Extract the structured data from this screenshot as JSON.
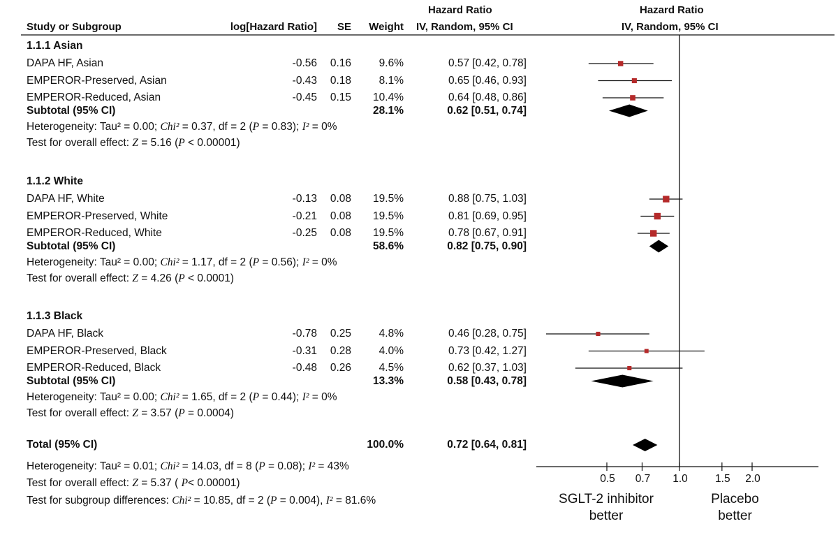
{
  "headers": {
    "study": "Study or Subgroup",
    "loghr": "log[Hazard Ratio]",
    "se": "SE",
    "weight": "Weight",
    "hr_top": "Hazard Ratio",
    "hr_method": "IV, Random, 95% CI",
    "plot_top": "Hazard Ratio",
    "plot_method": "IV, Random, 95% CI"
  },
  "groups": [
    {
      "title": "1.1.1 Asian",
      "rows": [
        {
          "study": "DAPA HF, Asian",
          "loghr": "-0.56",
          "se": "0.16",
          "weight": "9.6%",
          "ci_text": "0.57 [0.42, 0.78]"
        },
        {
          "study": "EMPEROR-Preserved, Asian",
          "loghr": "-0.43",
          "se": "0.18",
          "weight": "8.1%",
          "ci_text": "0.65 [0.46, 0.93]"
        },
        {
          "study": "EMPEROR-Reduced, Asian",
          "loghr": "-0.45",
          "se": "0.15",
          "weight": "10.4%",
          "ci_text": "0.64 [0.48, 0.86]"
        }
      ],
      "subtotal": {
        "label": "Subtotal (95% CI)",
        "weight": "28.1%",
        "ci_text": "0.62 [0.51, 0.74]"
      },
      "heterogeneity": {
        "prefix": "Heterogeneity: Tau² = 0.00;  ",
        "chi": "Chi²",
        "mid": " = 0.37, df = 2 (",
        "p": "P",
        "pval": " = 0.83); ",
        "i2": "I²",
        "tail": " = 0%"
      },
      "overall": {
        "prefix": "Test for overall effect: ",
        "z": "Z",
        "mid": " = 5.16 (",
        "p": "P",
        "tail": " < 0.00001)"
      }
    },
    {
      "title": "1.1.2 White",
      "rows": [
        {
          "study": "DAPA HF, White",
          "loghr": "-0.13",
          "se": "0.08",
          "weight": "19.5%",
          "ci_text": "0.88 [0.75, 1.03]"
        },
        {
          "study": "EMPEROR-Preserved, White",
          "loghr": "-0.21",
          "se": "0.08",
          "weight": "19.5%",
          "ci_text": "0.81 [0.69, 0.95]"
        },
        {
          "study": "EMPEROR-Reduced, White",
          "loghr": "-0.25",
          "se": "0.08",
          "weight": "19.5%",
          "ci_text": "0.78 [0.67, 0.91]"
        }
      ],
      "subtotal": {
        "label": "Subtotal (95% CI)",
        "weight": "58.6%",
        "ci_text": "0.82 [0.75, 0.90]"
      },
      "heterogeneity": {
        "prefix": "Heterogeneity: Tau² = 0.00;  ",
        "chi": "Chi²",
        "mid": " = 1.17, df = 2 (",
        "p": "P",
        "pval": " = 0.56); ",
        "i2": "I²",
        "tail": " = 0%"
      },
      "overall": {
        "prefix": "Test for overall effect: ",
        "z": "Z",
        "mid": " = 4.26 (",
        "p": "P",
        "tail": " < 0.0001)"
      }
    },
    {
      "title": "1.1.3 Black",
      "rows": [
        {
          "study": "DAPA HF, Black",
          "loghr": "-0.78",
          "se": "0.25",
          "weight": "4.8%",
          "ci_text": "0.46 [0.28, 0.75]"
        },
        {
          "study": "EMPEROR-Preserved, Black",
          "loghr": "-0.31",
          "se": "0.28",
          "weight": "4.0%",
          "ci_text": "0.73 [0.42, 1.27]"
        },
        {
          "study": "EMPEROR-Reduced, Black",
          "loghr": "-0.48",
          "se": "0.26",
          "weight": "4.5%",
          "ci_text": "0.62 [0.37, 1.03]"
        }
      ],
      "subtotal": {
        "label": "Subtotal (95% CI)",
        "weight": "13.3%",
        "ci_text": "0.58 [0.43, 0.78]"
      },
      "heterogeneity": {
        "prefix": "Heterogeneity: Tau² = 0.00;  ",
        "chi": "Chi²",
        "mid": " = 1.65, df = 2 (",
        "p": "P",
        "pval": " = 0.44); ",
        "i2": "I²",
        "tail": " = 0%"
      },
      "overall": {
        "prefix": "Test for overall effect: ",
        "z": "Z",
        "mid": " = 3.57 (",
        "p": "P",
        "tail": " = 0.0004)"
      }
    }
  ],
  "total": {
    "label": "Total (95% CI)",
    "weight": "100.0%",
    "ci_text": "0.72 [0.64, 0.81]",
    "heterogeneity": {
      "prefix": "Heterogeneity: Tau² = 0.01;  ",
      "chi": "Chi²",
      "mid": " = 14.03, df = 8 (",
      "p": "P",
      "pval": " = 0.08); ",
      "i2": "I²",
      "tail": " = 43%"
    },
    "overall": {
      "prefix": "Test for overall effect: ",
      "z": "Z",
      "mid": " = 5.37 ( ",
      "p": "P",
      "tail": "< 0.00001)"
    },
    "subgroup": {
      "prefix": "Test for subgroup differences:  ",
      "chi": "Chi²",
      "mid": " = 10.85, df = 2 (",
      "p": "P",
      "pval": " = 0.004), ",
      "i2": "I²",
      "tail": " = 81.6%"
    }
  },
  "axis_labels": {
    "left": "SGLT-2 inhibitor better",
    "right": "Placebo better"
  },
  "colors": {
    "marker": "#b52a2a",
    "line": "#111111",
    "diamond": "#000000"
  },
  "chart_data": {
    "type": "forest",
    "scale": "log",
    "xlim": [
      0.4,
      2.2
    ],
    "reference": 1.0,
    "ticks": [
      0.5,
      0.7,
      1.0,
      1.5,
      2.0
    ],
    "tick_labels": [
      "0.5",
      "0.7",
      "1.0",
      "1.5",
      "2.0"
    ],
    "studies": [
      {
        "group": 0,
        "hr": 0.57,
        "lo": 0.42,
        "hi": 0.78,
        "weight": 9.6
      },
      {
        "group": 0,
        "hr": 0.65,
        "lo": 0.46,
        "hi": 0.93,
        "weight": 8.1
      },
      {
        "group": 0,
        "hr": 0.64,
        "lo": 0.48,
        "hi": 0.86,
        "weight": 10.4
      },
      {
        "group": 1,
        "hr": 0.88,
        "lo": 0.75,
        "hi": 1.03,
        "weight": 19.5
      },
      {
        "group": 1,
        "hr": 0.81,
        "lo": 0.69,
        "hi": 0.95,
        "weight": 19.5
      },
      {
        "group": 1,
        "hr": 0.78,
        "lo": 0.67,
        "hi": 0.91,
        "weight": 19.5
      },
      {
        "group": 2,
        "hr": 0.46,
        "lo": 0.28,
        "hi": 0.75,
        "weight": 4.8
      },
      {
        "group": 2,
        "hr": 0.73,
        "lo": 0.42,
        "hi": 1.27,
        "weight": 4.0
      },
      {
        "group": 2,
        "hr": 0.62,
        "lo": 0.37,
        "hi": 1.03,
        "weight": 4.5
      }
    ],
    "subtotals": [
      {
        "group": 0,
        "hr": 0.62,
        "lo": 0.51,
        "hi": 0.74
      },
      {
        "group": 1,
        "hr": 0.82,
        "lo": 0.75,
        "hi": 0.9
      },
      {
        "group": 2,
        "hr": 0.58,
        "lo": 0.43,
        "hi": 0.78
      }
    ],
    "overall": {
      "hr": 0.72,
      "lo": 0.64,
      "hi": 0.81
    }
  }
}
